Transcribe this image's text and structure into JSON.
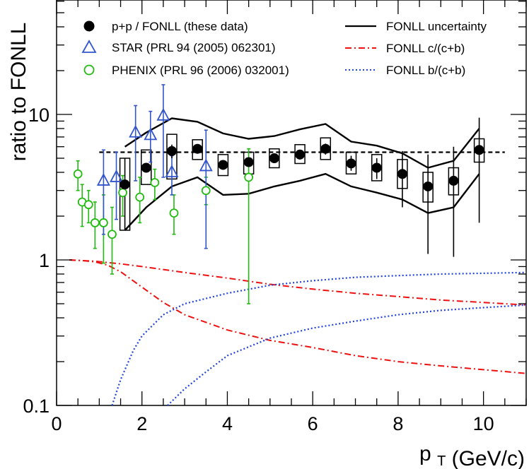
{
  "chart_data": {
    "type": "scatter",
    "title": "",
    "xlabel": "p",
    "xlabel_sub": "T",
    "xlabel_unit": "(GeV/c)",
    "ylabel": "ratio to FONLL",
    "xlim": [
      0,
      11
    ],
    "ylim": [
      0.1,
      60
    ],
    "yscale": "log",
    "x_ticks": [
      0,
      2,
      4,
      6,
      8,
      10
    ],
    "x_tick_labels": [
      "0",
      "2",
      "4",
      "6",
      "8",
      "10"
    ],
    "y_ticks": [
      0.1,
      1,
      10
    ],
    "y_tick_labels": [
      "0.1",
      "1",
      "10"
    ],
    "grid": false,
    "legend_position": "top",
    "colors": {
      "data": "#000000",
      "star": "#3355cc",
      "phenix": "#22bb11",
      "fonll_c": "#ee1111",
      "fonll_b": "#2244dd"
    },
    "reference_line": {
      "y": 5.5,
      "x_from": 1.0,
      "x_to": 10.5,
      "style": "dashed"
    },
    "series": [
      {
        "name": "p+p / FONLL (these data)",
        "marker": "filled-circle",
        "points": [
          {
            "x": 1.6,
            "y": 3.3,
            "ylo": 1.6,
            "yhi": 5.0,
            "sys_lo": 1.6,
            "sys_hi": 5.0
          },
          {
            "x": 2.1,
            "y": 4.3,
            "ylo": 4.0,
            "yhi": 4.6,
            "sys_lo": 3.3,
            "sys_hi": 5.7
          },
          {
            "x": 2.7,
            "y": 5.6,
            "ylo": 5.0,
            "yhi": 6.2,
            "sys_lo": 3.6,
            "sys_hi": 7.3
          },
          {
            "x": 3.3,
            "y": 5.8,
            "ylo": 5.5,
            "yhi": 6.1,
            "sys_lo": 4.9,
            "sys_hi": 6.7
          },
          {
            "x": 3.9,
            "y": 4.5,
            "ylo": 4.3,
            "yhi": 4.7,
            "sys_lo": 3.8,
            "sys_hi": 5.3
          },
          {
            "x": 4.5,
            "y": 4.7,
            "ylo": 4.4,
            "yhi": 5.0,
            "sys_lo": 3.9,
            "sys_hi": 5.5
          },
          {
            "x": 5.1,
            "y": 5.0,
            "ylo": 4.7,
            "yhi": 5.3,
            "sys_lo": 4.3,
            "sys_hi": 5.8
          },
          {
            "x": 5.7,
            "y": 5.3,
            "ylo": 4.9,
            "yhi": 5.7,
            "sys_lo": 4.6,
            "sys_hi": 6.2
          },
          {
            "x": 6.3,
            "y": 5.8,
            "ylo": 5.3,
            "yhi": 6.3,
            "sys_lo": 4.9,
            "sys_hi": 6.9
          },
          {
            "x": 6.9,
            "y": 4.6,
            "ylo": 4.1,
            "yhi": 5.2,
            "sys_lo": 3.9,
            "sys_hi": 5.5
          },
          {
            "x": 7.5,
            "y": 4.3,
            "ylo": 3.6,
            "yhi": 5.0,
            "sys_lo": 3.5,
            "sys_hi": 5.3
          },
          {
            "x": 8.1,
            "y": 3.9,
            "ylo": 2.3,
            "yhi": 5.6,
            "sys_lo": 3.1,
            "sys_hi": 4.9
          },
          {
            "x": 8.7,
            "y": 3.2,
            "ylo": 1.1,
            "yhi": 5.3,
            "sys_lo": 2.5,
            "sys_hi": 4.0
          },
          {
            "x": 9.3,
            "y": 3.5,
            "ylo": 1.05,
            "yhi": 6.0,
            "sys_lo": 2.8,
            "sys_hi": 4.3
          },
          {
            "x": 9.9,
            "y": 5.7,
            "ylo": 1.8,
            "yhi": 9.5,
            "sys_lo": 4.7,
            "sys_hi": 6.8
          }
        ]
      },
      {
        "name": "STAR (PRL 94 (2005) 062301)",
        "marker": "open-triangle",
        "points": [
          {
            "x": 1.1,
            "y": 3.5,
            "ylo": 1.5,
            "yhi": 5.7
          },
          {
            "x": 1.4,
            "y": 3.7,
            "ylo": 1.9,
            "yhi": 5.5
          },
          {
            "x": 1.85,
            "y": 7.5,
            "ylo": 3.5,
            "yhi": 11.5
          },
          {
            "x": 2.2,
            "y": 7.2,
            "ylo": 4.7,
            "yhi": 10.5
          },
          {
            "x": 2.5,
            "y": 9.8,
            "ylo": 3.7,
            "yhi": 16.0
          },
          {
            "x": 2.7,
            "y": 4.0,
            "ylo": 2.8,
            "yhi": 5.2
          },
          {
            "x": 3.5,
            "y": 4.4,
            "ylo": 1.2,
            "yhi": 7.8
          }
        ]
      },
      {
        "name": "PHENIX (PRL 96 (2006) 032001)",
        "marker": "open-circle",
        "points": [
          {
            "x": 0.5,
            "y": 3.9,
            "ylo": 3.0,
            "yhi": 4.8
          },
          {
            "x": 0.6,
            "y": 2.5,
            "ylo": 1.7,
            "yhi": 3.3
          },
          {
            "x": 0.75,
            "y": 2.4,
            "ylo": 1.8,
            "yhi": 3.0
          },
          {
            "x": 0.9,
            "y": 1.8,
            "ylo": 1.2,
            "yhi": 2.5
          },
          {
            "x": 1.1,
            "y": 1.8,
            "ylo": 0.95,
            "yhi": 2.8
          },
          {
            "x": 1.3,
            "y": 1.5,
            "ylo": 0.8,
            "yhi": 2.3
          },
          {
            "x": 1.55,
            "y": 2.9,
            "ylo": 2.0,
            "yhi": 3.8
          },
          {
            "x": 1.95,
            "y": 2.7,
            "ylo": 1.8,
            "yhi": 3.7
          },
          {
            "x": 2.3,
            "y": 3.4,
            "ylo": 2.6,
            "yhi": 4.2
          },
          {
            "x": 2.75,
            "y": 2.1,
            "ylo": 1.5,
            "yhi": 2.8
          },
          {
            "x": 3.5,
            "y": 3.0,
            "ylo": 2.4,
            "yhi": 3.7
          },
          {
            "x": 4.5,
            "y": 3.7,
            "ylo": 0.5,
            "yhi": 5.8
          }
        ]
      },
      {
        "name": "FONLL uncertainty",
        "style": "solid",
        "upper": {
          "x": [
            1.6,
            2.1,
            2.7,
            3.3,
            3.9,
            4.5,
            5.1,
            5.7,
            6.3,
            6.9,
            7.5,
            8.1,
            8.7,
            9.3,
            9.9
          ],
          "y": [
            6.0,
            7.5,
            9.4,
            8.9,
            7.4,
            6.8,
            7.1,
            7.9,
            8.6,
            6.5,
            6.1,
            5.4,
            4.3,
            4.8,
            8.0
          ]
        },
        "lower": {
          "x": [
            1.6,
            2.1,
            2.7,
            3.3,
            3.9,
            4.5,
            5.1,
            5.7,
            6.3,
            6.9,
            7.5,
            8.1,
            8.7,
            9.3,
            9.9
          ],
          "y": [
            1.6,
            2.3,
            3.2,
            3.7,
            2.8,
            2.85,
            3.2,
            3.5,
            3.9,
            3.2,
            2.9,
            2.6,
            2.1,
            2.3,
            3.9
          ]
        }
      },
      {
        "name": "FONLL c/(c+b)",
        "style": "dash-dot",
        "curves": [
          {
            "x": [
              0.3,
              0.6,
              0.9,
              1.2,
              1.5,
              2,
              3,
              4,
              5,
              6,
              7,
              8,
              9,
              10,
              11
            ],
            "y": [
              1.0,
              0.99,
              0.98,
              0.96,
              0.94,
              0.9,
              0.82,
              0.75,
              0.68,
              0.63,
              0.59,
              0.56,
              0.53,
              0.51,
              0.49
            ]
          },
          {
            "x": [
              0.3,
              0.6,
              0.9,
              1.2,
              1.5,
              2,
              2.5,
              3,
              4,
              5,
              6,
              7,
              8,
              9,
              10,
              11
            ],
            "y": [
              1.0,
              0.99,
              0.97,
              0.92,
              0.83,
              0.65,
              0.51,
              0.42,
              0.33,
              0.28,
              0.25,
              0.22,
              0.2,
              0.187,
              0.176,
              0.166
            ]
          }
        ]
      },
      {
        "name": "FONLL b/(c+b)",
        "style": "dotted",
        "curves": [
          {
            "x": [
              1.3,
              1.5,
              1.8,
              2,
              2.5,
              3,
              4,
              5,
              6,
              7,
              8,
              9,
              10,
              11
            ],
            "y": [
              0.1,
              0.15,
              0.24,
              0.3,
              0.42,
              0.5,
              0.59,
              0.67,
              0.72,
              0.76,
              0.78,
              0.8,
              0.81,
              0.82
            ]
          },
          {
            "x": [
              2.6,
              3,
              3.5,
              4,
              5,
              6,
              7,
              8,
              9,
              10,
              11
            ],
            "y": [
              0.1,
              0.13,
              0.17,
              0.22,
              0.29,
              0.34,
              0.38,
              0.42,
              0.45,
              0.47,
              0.49
            ]
          }
        ]
      }
    ]
  }
}
